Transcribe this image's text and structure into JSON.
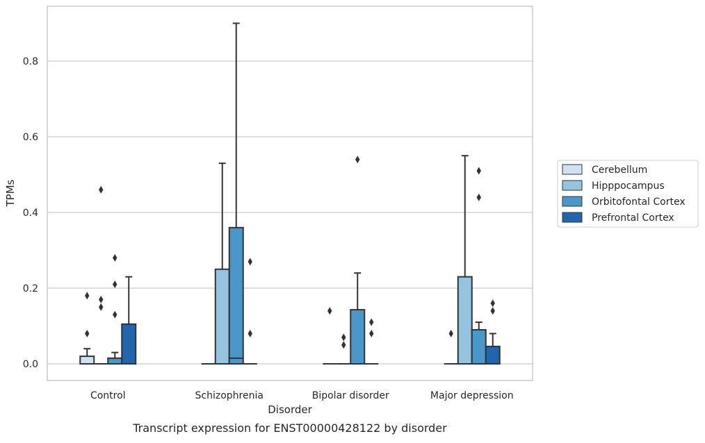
{
  "chart_data": {
    "type": "box",
    "title": "",
    "caption": "Transcript expression for ENST00000428122 by disorder",
    "xlabel": "Disorder",
    "ylabel": "TPMs",
    "ylim": [
      -0.045,
      0.94
    ],
    "yticks": [
      0.0,
      0.2,
      0.4,
      0.6,
      0.8
    ],
    "ytick_labels": [
      "0.0",
      "0.2",
      "0.4",
      "0.6",
      "0.8"
    ],
    "grid": "horizontal",
    "legend_position": "outside-right",
    "categories": [
      "Control",
      "Schizophrenia",
      "Bipolar disorder",
      "Major depression"
    ],
    "series": [
      {
        "name": "Cerebellum",
        "color": "#d0e1f2",
        "boxes": [
          {
            "q1": 0.0,
            "median": 0.0,
            "q3": 0.02,
            "whisker_low": 0.0,
            "whisker_high": 0.04,
            "outliers": [
              0.08,
              0.18
            ]
          },
          {
            "q1": 0.0,
            "median": 0.0,
            "q3": 0.0,
            "whisker_low": 0.0,
            "whisker_high": 0.0,
            "outliers": []
          },
          {
            "q1": 0.0,
            "median": 0.0,
            "q3": 0.0,
            "whisker_low": 0.0,
            "whisker_high": 0.0,
            "outliers": [
              0.14
            ]
          },
          {
            "q1": 0.0,
            "median": 0.0,
            "q3": 0.0,
            "whisker_low": 0.0,
            "whisker_high": 0.0,
            "outliers": [
              0.08
            ]
          }
        ]
      },
      {
        "name": "Hipppocampus",
        "color": "#94c4df",
        "boxes": [
          {
            "q1": 0.0,
            "median": 0.0,
            "q3": 0.0,
            "whisker_low": 0.0,
            "whisker_high": 0.0,
            "outliers": [
              0.15,
              0.17,
              0.46
            ]
          },
          {
            "q1": 0.0,
            "median": 0.0,
            "q3": 0.25,
            "whisker_low": 0.0,
            "whisker_high": 0.53,
            "outliers": []
          },
          {
            "q1": 0.0,
            "median": 0.0,
            "q3": 0.0,
            "whisker_low": 0.0,
            "whisker_high": 0.0,
            "outliers": [
              0.05,
              0.07
            ]
          },
          {
            "q1": 0.0,
            "median": 0.0,
            "q3": 0.23,
            "whisker_low": 0.0,
            "whisker_high": 0.55,
            "outliers": []
          }
        ]
      },
      {
        "name": "Orbitofontal Cortex",
        "color": "#4a98c9",
        "boxes": [
          {
            "q1": 0.0,
            "median": 0.0,
            "q3": 0.015,
            "whisker_low": 0.0,
            "whisker_high": 0.03,
            "outliers": [
              0.13,
              0.21,
              0.28
            ]
          },
          {
            "q1": 0.0,
            "median": 0.015,
            "q3": 0.36,
            "whisker_low": 0.0,
            "whisker_high": 0.9,
            "outliers": []
          },
          {
            "q1": 0.0,
            "median": 0.0,
            "q3": 0.143,
            "whisker_low": 0.0,
            "whisker_high": 0.24,
            "outliers": [
              0.54
            ]
          },
          {
            "q1": 0.0,
            "median": 0.0,
            "q3": 0.09,
            "whisker_low": 0.0,
            "whisker_high": 0.11,
            "outliers": [
              0.44,
              0.51
            ]
          }
        ]
      },
      {
        "name": "Prefrontal Cortex",
        "color": "#2166ac",
        "boxes": [
          {
            "q1": 0.0,
            "median": 0.0,
            "q3": 0.105,
            "whisker_low": 0.0,
            "whisker_high": 0.23,
            "outliers": []
          },
          {
            "q1": 0.0,
            "median": 0.0,
            "q3": 0.0,
            "whisker_low": 0.0,
            "whisker_high": 0.0,
            "outliers": [
              0.08,
              0.27
            ]
          },
          {
            "q1": 0.0,
            "median": 0.0,
            "q3": 0.0,
            "whisker_low": 0.0,
            "whisker_high": 0.0,
            "outliers": [
              0.08,
              0.11
            ]
          },
          {
            "q1": 0.0,
            "median": 0.0,
            "q3": 0.046,
            "whisker_low": 0.0,
            "whisker_high": 0.08,
            "outliers": [
              0.14,
              0.16
            ]
          }
        ]
      }
    ]
  }
}
